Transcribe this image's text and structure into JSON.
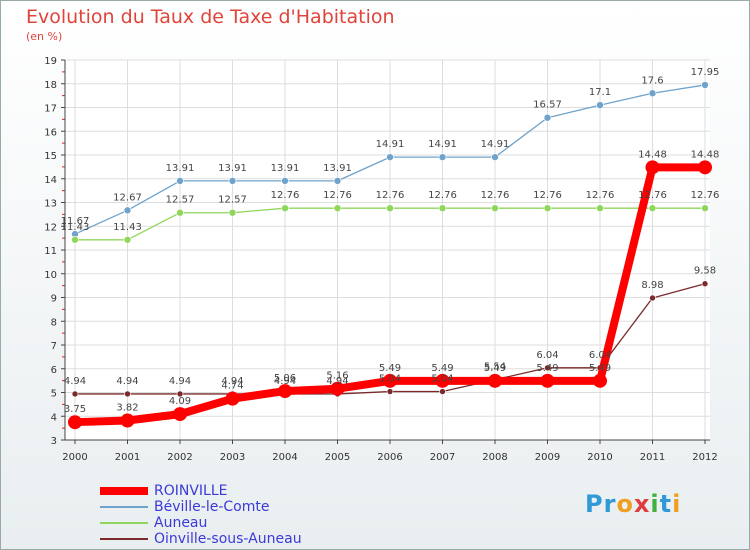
{
  "title": "Evolution du Taux de Taxe d'Habitation",
  "subtitle": "(en %)",
  "logo": {
    "text": "Proxiti",
    "letters": [
      "P",
      "r",
      "o",
      "x",
      "i",
      "t",
      "i"
    ],
    "colors": [
      "#2f9ad6",
      "#2f9ad6",
      "#f0a020",
      "#e03c3c",
      "#40b040",
      "#2f9ad6",
      "#f0a020"
    ]
  },
  "chart_data": {
    "type": "line",
    "categories": [
      "2000",
      "2001",
      "2002",
      "2003",
      "2004",
      "2005",
      "2006",
      "2007",
      "2008",
      "2009",
      "2010",
      "2011",
      "2012"
    ],
    "ylim": [
      3,
      19
    ],
    "yticks": [
      "3",
      "4",
      "5",
      "6",
      "7",
      "8",
      "9",
      "10",
      "11",
      "12",
      "13",
      "14",
      "15",
      "16",
      "17",
      "18",
      "19"
    ],
    "grid": true,
    "legend_position": "bottom-left",
    "series": [
      {
        "name": "ROINVILLE",
        "color": "#ff0000",
        "values": [
          3.75,
          3.82,
          4.09,
          4.74,
          5.06,
          5.16,
          5.49,
          5.49,
          5.49,
          5.49,
          5.49,
          14.48,
          14.48
        ],
        "labels": [
          "3.75",
          "3.82",
          "4.09",
          "4.74",
          "5.06",
          "5.16",
          "5.49",
          "5.49",
          "5.49",
          "5.49",
          "5.49",
          "14.48",
          "14.48"
        ]
      },
      {
        "name": "Béville-le-Comte",
        "color": "#6fa3cc",
        "values": [
          11.67,
          12.67,
          13.91,
          13.91,
          13.91,
          13.91,
          14.91,
          14.91,
          14.91,
          16.57,
          17.1,
          17.6,
          17.95
        ],
        "labels": [
          "11.67",
          "12.67",
          "13.91",
          "13.91",
          "13.91",
          "13.91",
          "14.91",
          "14.91",
          "14.91",
          "16.57",
          "17.1",
          "17.6",
          "17.95"
        ]
      },
      {
        "name": "Auneau",
        "color": "#8fd65a",
        "values": [
          11.43,
          11.43,
          12.57,
          12.57,
          12.76,
          12.76,
          12.76,
          12.76,
          12.76,
          12.76,
          12.76,
          12.76,
          12.76
        ],
        "labels": [
          "11.43",
          "11.43",
          "12.57",
          "12.57",
          "12.76",
          "12.76",
          "12.76",
          "12.76",
          "12.76",
          "12.76",
          "12.76",
          "12.76",
          "12.76"
        ]
      },
      {
        "name": "Oinville-sous-Auneau",
        "color": "#7a2a2a",
        "values": [
          4.94,
          4.94,
          4.94,
          4.94,
          4.94,
          4.94,
          5.04,
          5.04,
          5.54,
          6.04,
          6.04,
          8.98,
          9.58
        ],
        "labels": [
          "4.94",
          "4.94",
          "4.94",
          "4.94",
          "4.94",
          "4.94",
          "5.04",
          "5.04",
          "5.54",
          "6.04",
          "6.04",
          "8.98",
          "9.58"
        ]
      }
    ]
  }
}
